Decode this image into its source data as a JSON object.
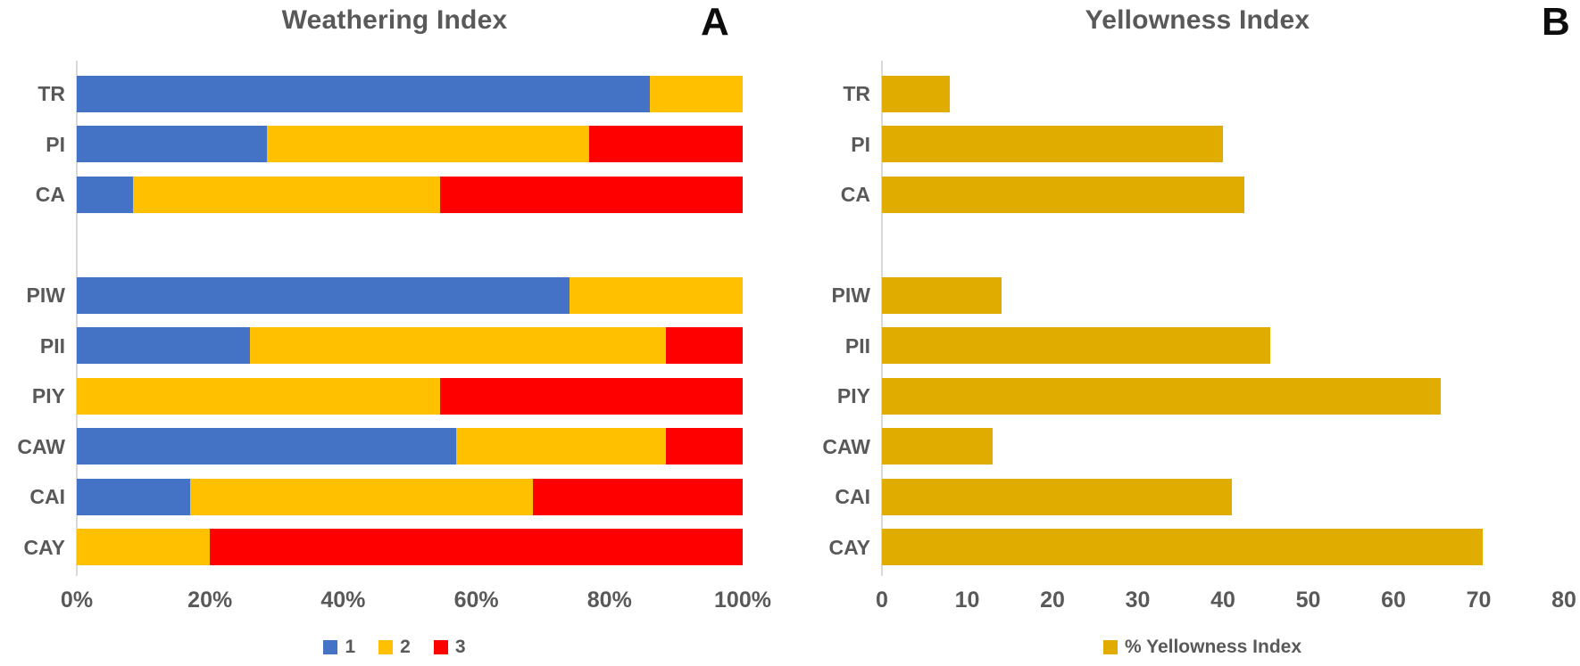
{
  "figure": {
    "corner_labels": [
      "A",
      "B"
    ]
  },
  "chart_data": [
    {
      "type": "bar",
      "orientation": "horizontal",
      "stacked": true,
      "title": "Weathering Index",
      "categories": [
        "TR",
        "PI",
        "CA",
        "",
        "PIW",
        "PII",
        "PIY",
        "CAW",
        "CAI",
        "CAY"
      ],
      "series": [
        {
          "name": "1",
          "color": "#4472C4",
          "values": [
            86,
            28.5,
            8.5,
            null,
            74,
            26,
            0,
            57,
            17,
            0
          ]
        },
        {
          "name": "2",
          "color": "#FFC000",
          "values": [
            14,
            48.5,
            46,
            null,
            26,
            62.5,
            54.5,
            31.5,
            51.5,
            20
          ]
        },
        {
          "name": "3",
          "color": "#FF0000",
          "values": [
            0,
            23,
            45.5,
            null,
            0,
            11.5,
            45.5,
            11.5,
            31.5,
            80
          ]
        }
      ],
      "xlim": [
        0,
        100
      ],
      "x_tick_labels": [
        "0%",
        "20%",
        "40%",
        "60%",
        "80%",
        "100%"
      ],
      "grid": false,
      "legend_position": "bottom"
    },
    {
      "type": "bar",
      "orientation": "horizontal",
      "stacked": false,
      "title": "Yellowness Index",
      "categories": [
        "TR",
        "PI",
        "CA",
        "",
        "PIW",
        "PII",
        "PIY",
        "CAW",
        "CAI",
        "CAY"
      ],
      "series": [
        {
          "name": "% Yellowness Index",
          "color": "#E0AC00",
          "values": [
            8,
            40,
            42.5,
            null,
            14,
            45.5,
            65.5,
            13,
            41,
            70.5
          ]
        }
      ],
      "xlim": [
        0,
        80
      ],
      "x_tick_labels": [
        "0",
        "10",
        "20",
        "30",
        "40",
        "50",
        "60",
        "70",
        "80"
      ],
      "grid": false,
      "legend_position": "bottom"
    }
  ]
}
